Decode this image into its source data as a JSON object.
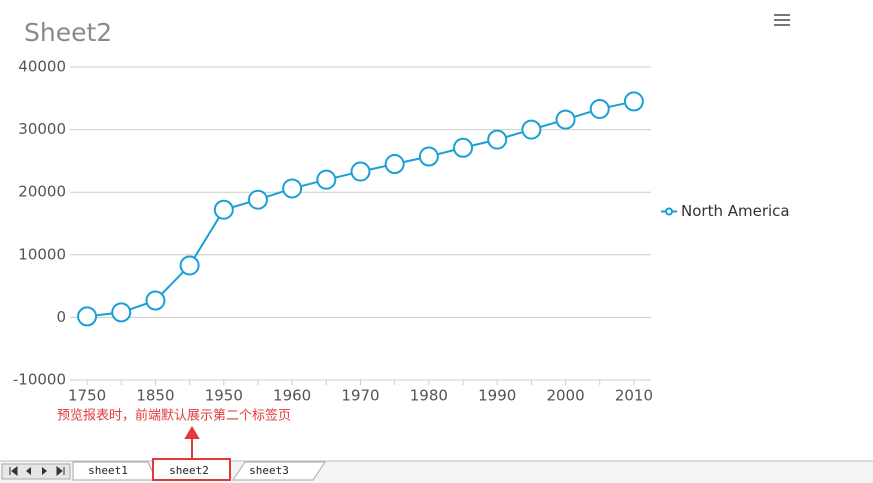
{
  "chart_data": {
    "type": "line",
    "title": "Sheet2",
    "categories": [
      "1750",
      null,
      "1850",
      null,
      "1950",
      null,
      "1960",
      null,
      "1970",
      null,
      "1980",
      null,
      "1990",
      null,
      "2000",
      null,
      "2010"
    ],
    "series": [
      {
        "name": "North America",
        "color": "#1a9fd6",
        "values": [
          160,
          800,
          2700,
          8300,
          17200,
          18800,
          20600,
          22000,
          23300,
          24500,
          25700,
          27100,
          28400,
          30000,
          31600,
          33300,
          34500
        ]
      }
    ],
    "ylim": [
      -10000,
      40000
    ],
    "yticks": [
      -10000,
      0,
      10000,
      20000,
      30000,
      40000
    ],
    "grid": true,
    "legend": "right"
  },
  "annotation": "预览报表时，前端默认展示第二个标签页",
  "tabs": [
    "sheet1",
    "sheet2",
    "sheet3"
  ]
}
